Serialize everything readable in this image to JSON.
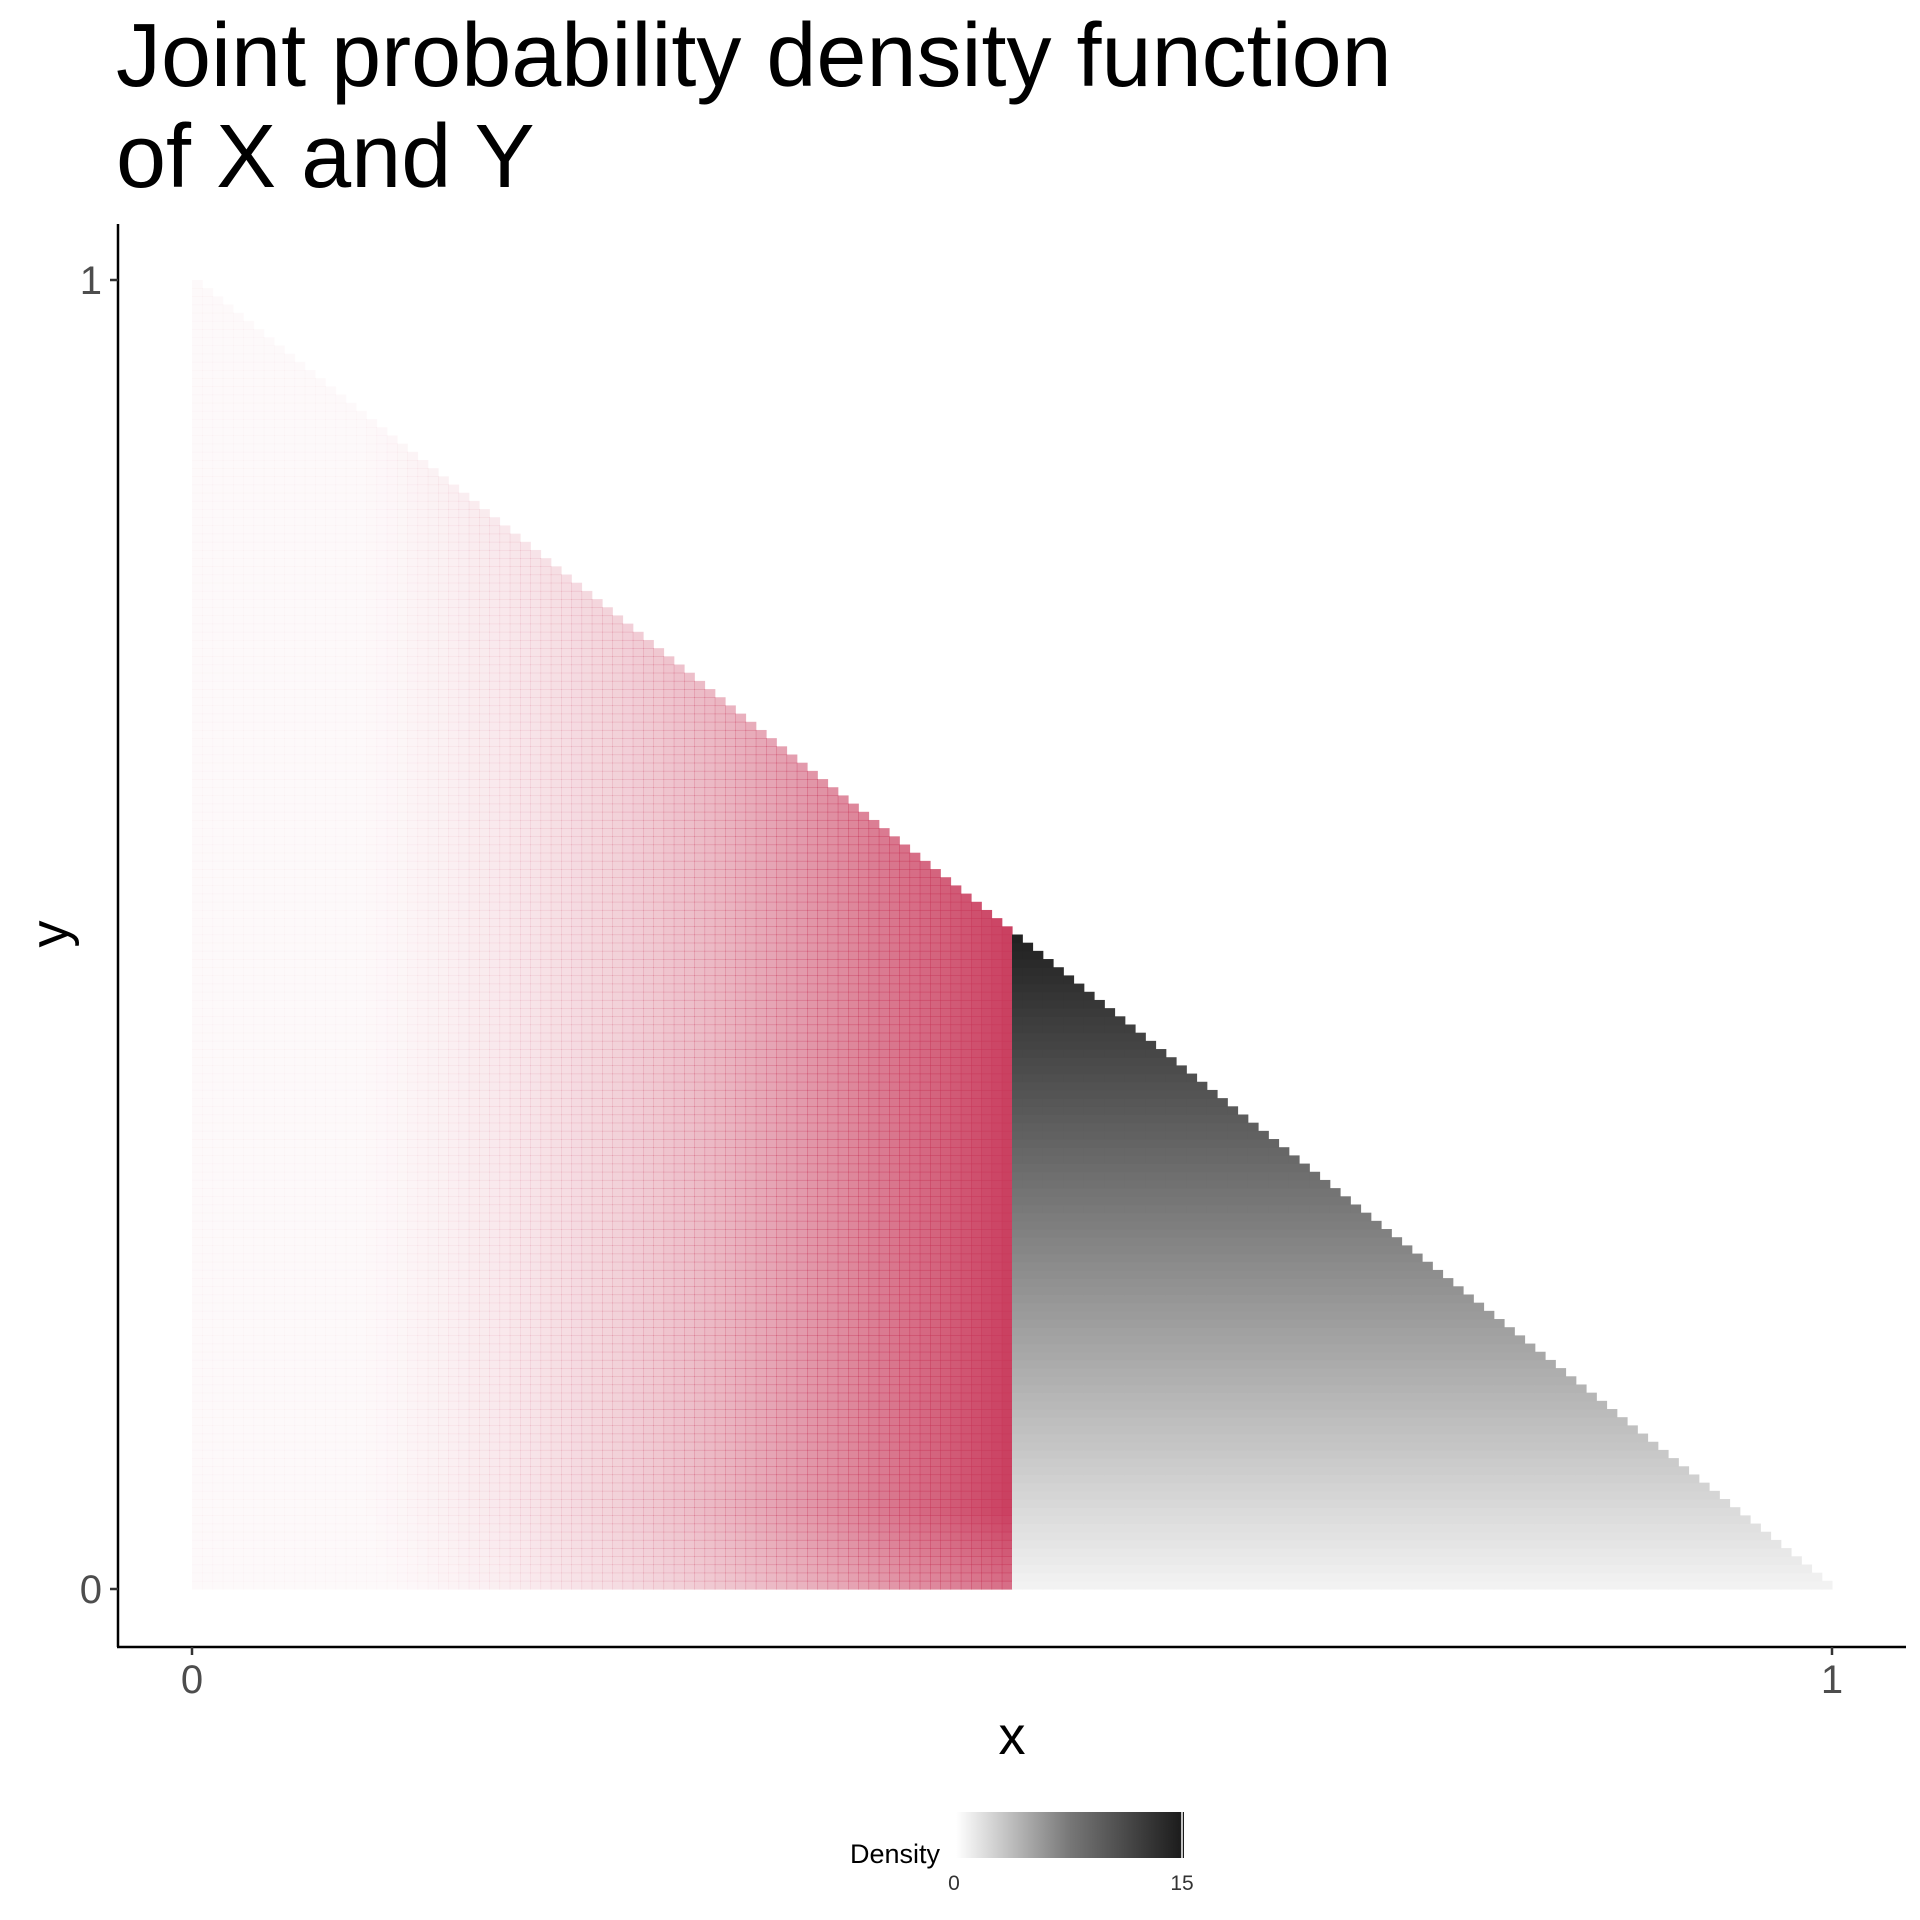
{
  "chart_data": {
    "type": "heatmap",
    "title": "Joint probability density function of X and Y",
    "title_lines": [
      "Joint probability density function",
      "of X and Y"
    ],
    "xlabel": "x",
    "ylabel": "y",
    "xlim": [
      0,
      1
    ],
    "ylim": [
      0,
      1
    ],
    "x_ticks": [
      0,
      1
    ],
    "x_tick_labels": [
      "0",
      "1"
    ],
    "y_ticks": [
      0,
      1
    ],
    "y_tick_labels": [
      "0",
      "1"
    ],
    "grid": false,
    "support": "triangle 0 <= x <= 1, 0 <= y <= 1 - x",
    "highlight_region": {
      "x_range": [
        0,
        0.5
      ],
      "color": "#c8385a"
    },
    "fill_scale": {
      "name": "Density",
      "low": 0,
      "high": 15,
      "low_color": "#ffffff",
      "high_color": "#1a1a1a",
      "breaks": [
        0,
        15
      ],
      "break_labels": [
        "0",
        "15"
      ]
    },
    "legend_position": "bottom"
  }
}
